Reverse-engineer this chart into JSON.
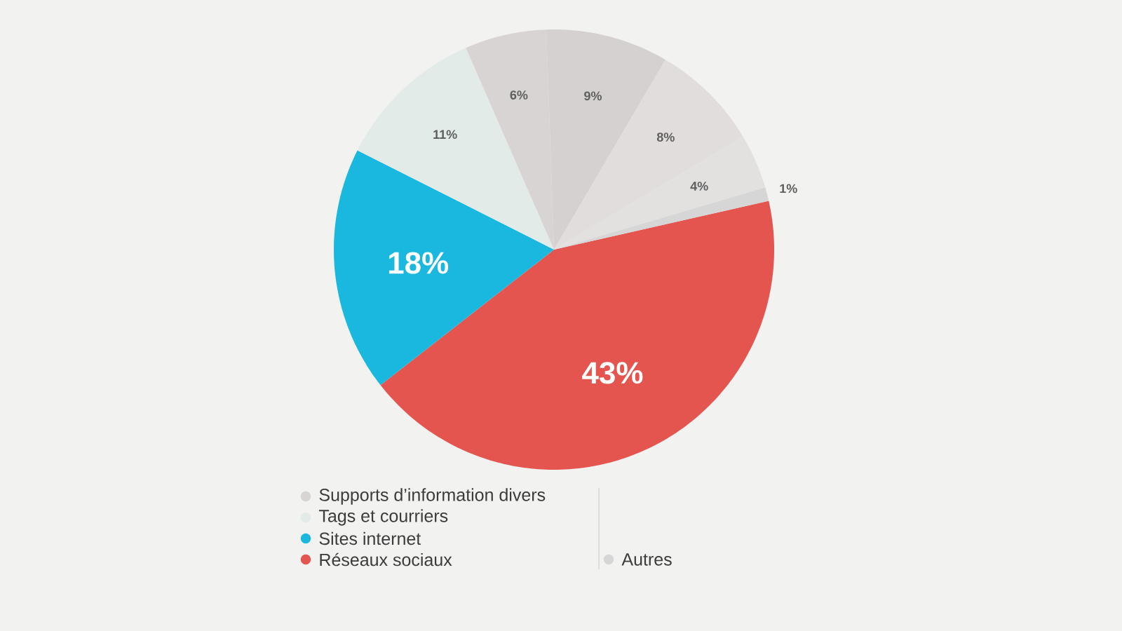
{
  "chart_data": {
    "type": "pie",
    "categories": [
      "Supports d’information divers",
      "Tags et courriers",
      "Sites internet",
      "Réseaux sociaux",
      null,
      null,
      null,
      "Autres"
    ],
    "values": [
      6,
      11,
      18,
      43,
      9,
      8,
      4,
      1
    ],
    "colors": [
      "#d8d4d3",
      "#e2ebe8",
      "#1ab8df",
      "#e5554f",
      "#d5d1d0",
      "#e0dddc",
      "#e3e1e0",
      "#d6d6d6"
    ],
    "value_labels": [
      "6%",
      "11%",
      "18%",
      "43%",
      "9%",
      "8%",
      "4%",
      "1%"
    ],
    "legend": "bottom"
  }
}
